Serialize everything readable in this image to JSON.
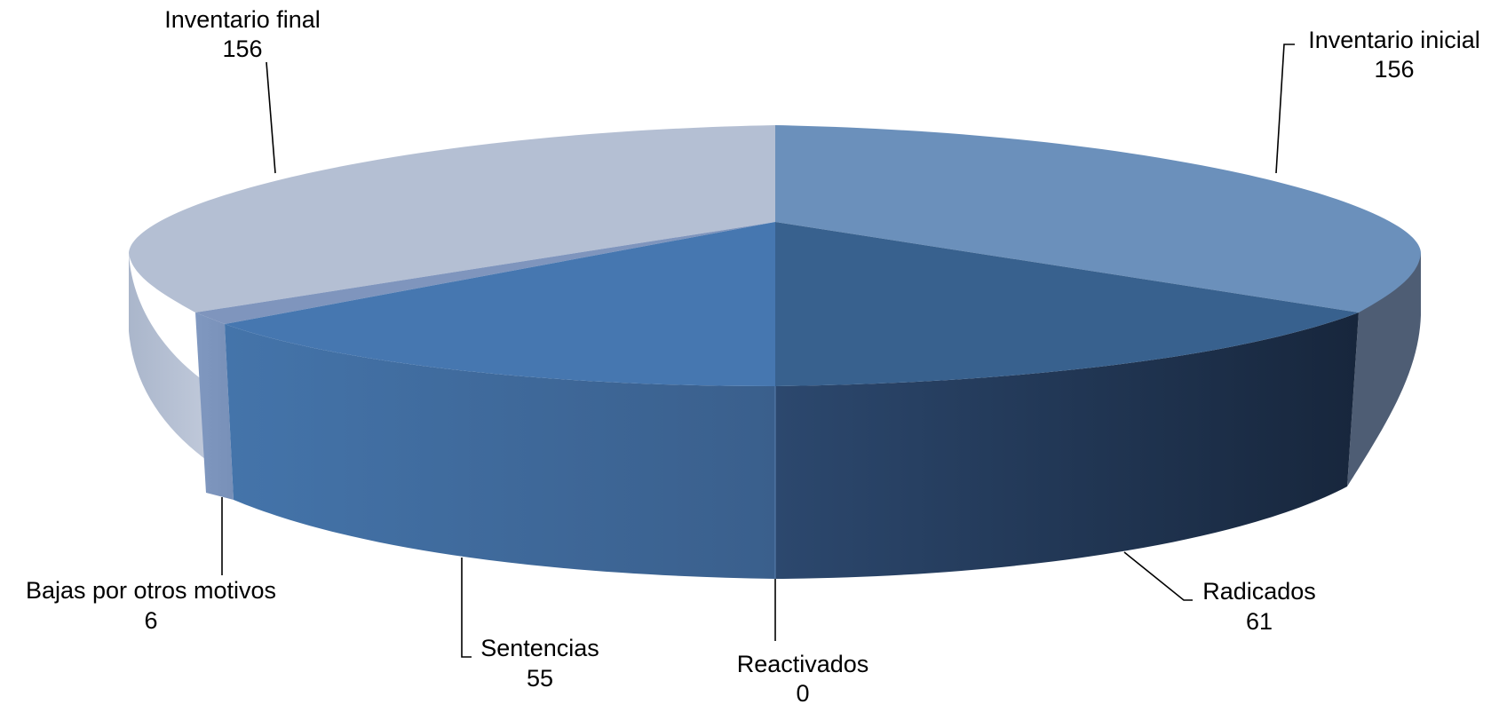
{
  "chart_data": {
    "type": "pie",
    "style": "3d",
    "categories": [
      "Inventario inicial",
      "Radicados",
      "Reactivados",
      "Sentencias",
      "Bajas por otros motivos",
      "Inventario final"
    ],
    "values": [
      156,
      61,
      0,
      55,
      6,
      156
    ],
    "value_labels": [
      "156",
      "61",
      "0",
      "55",
      "6",
      "156"
    ],
    "colors": [
      "#6b90bb",
      "#38618e",
      "#5b82b0",
      "#4677b0",
      "#7f95bd",
      "#b4bfd3"
    ],
    "legend": "none",
    "title": ""
  }
}
